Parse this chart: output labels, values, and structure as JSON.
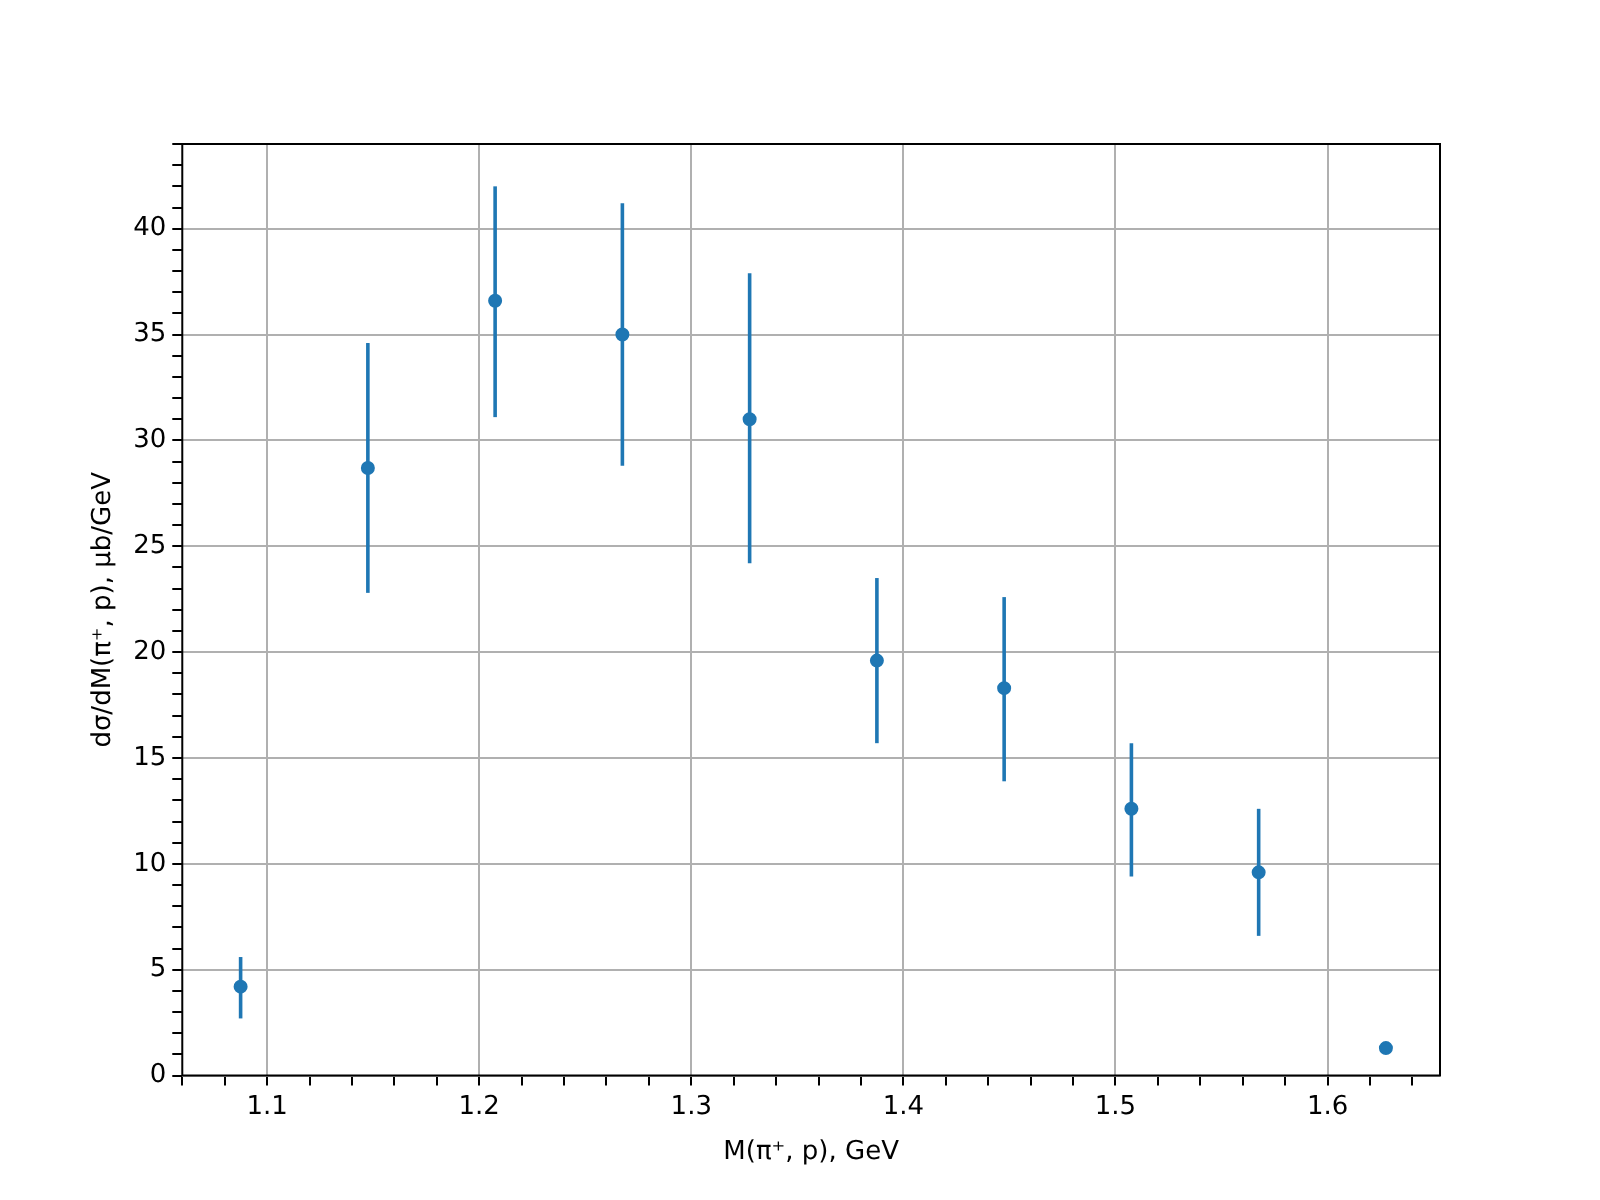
{
  "chart_data": {
    "type": "scatter",
    "xlabel": "M(π⁺, p), GeV",
    "ylabel": "dσ/dM(π⁺, p), μb/GeV",
    "x": [
      1.0875,
      1.1475,
      1.2075,
      1.2675,
      1.3275,
      1.3875,
      1.4475,
      1.5075,
      1.5675,
      1.6275
    ],
    "series": [
      {
        "color": "#1f77b4",
        "values": [
          4.2,
          28.7,
          36.6,
          35.0,
          31.0,
          19.6,
          18.3,
          12.6,
          9.6,
          1.3
        ],
        "errors": [
          [
            2.7,
            5.6
          ],
          [
            22.8,
            34.6
          ],
          [
            31.1,
            42.0
          ],
          [
            28.8,
            41.2
          ],
          [
            24.2,
            37.9
          ],
          [
            15.7,
            23.5
          ],
          [
            13.9,
            22.6
          ],
          [
            9.4,
            15.7
          ],
          [
            6.6,
            12.6
          ],
          null
        ]
      }
    ],
    "marker": "circle",
    "xlim": [
      1.06,
      1.653
    ],
    "ylim": [
      0,
      44
    ],
    "xticks": [
      {
        "value": 1.06,
        "label": null
      },
      {
        "value": 1.08,
        "label": null
      },
      {
        "value": 1.1,
        "label": "1.1"
      },
      {
        "value": 1.12,
        "label": null
      },
      {
        "value": 1.14,
        "label": null
      },
      {
        "value": 1.16,
        "label": null
      },
      {
        "value": 1.18,
        "label": null
      },
      {
        "value": 1.2,
        "label": "1.2"
      },
      {
        "value": 1.22,
        "label": null
      },
      {
        "value": 1.24,
        "label": null
      },
      {
        "value": 1.26,
        "label": null
      },
      {
        "value": 1.28,
        "label": null
      },
      {
        "value": 1.3,
        "label": "1.3"
      },
      {
        "value": 1.32,
        "label": null
      },
      {
        "value": 1.34,
        "label": null
      },
      {
        "value": 1.36,
        "label": null
      },
      {
        "value": 1.38,
        "label": null
      },
      {
        "value": 1.4,
        "label": "1.4"
      },
      {
        "value": 1.42,
        "label": null
      },
      {
        "value": 1.44,
        "label": null
      },
      {
        "value": 1.46,
        "label": null
      },
      {
        "value": 1.48,
        "label": null
      },
      {
        "value": 1.5,
        "label": "1.5"
      },
      {
        "value": 1.52,
        "label": null
      },
      {
        "value": 1.54,
        "label": null
      },
      {
        "value": 1.56,
        "label": null
      },
      {
        "value": 1.58,
        "label": null
      },
      {
        "value": 1.6,
        "label": "1.6"
      },
      {
        "value": 1.62,
        "label": null
      },
      {
        "value": 1.64,
        "label": null
      }
    ],
    "yticks": [
      0,
      {
        "value": 1,
        "label": null
      },
      {
        "value": 2,
        "label": null
      },
      {
        "value": 3,
        "label": null
      },
      {
        "value": 4,
        "label": null
      },
      5,
      {
        "value": 6,
        "label": null
      },
      {
        "value": 7,
        "label": null
      },
      {
        "value": 8,
        "label": null
      },
      {
        "value": 9,
        "label": null
      },
      10,
      {
        "value": 11,
        "label": null
      },
      {
        "value": 12,
        "label": null
      },
      {
        "value": 13,
        "label": null
      },
      {
        "value": 14,
        "label": null
      },
      15,
      {
        "value": 16,
        "label": null
      },
      {
        "value": 17,
        "label": null
      },
      {
        "value": 18,
        "label": null
      },
      {
        "value": 19,
        "label": null
      },
      20,
      {
        "value": 21,
        "label": null
      },
      {
        "value": 22,
        "label": null
      },
      {
        "value": 23,
        "label": null
      },
      {
        "value": 24,
        "label": null
      },
      25,
      {
        "value": 26,
        "label": null
      },
      {
        "value": 27,
        "label": null
      },
      {
        "value": 28,
        "label": null
      },
      {
        "value": 29,
        "label": null
      },
      30,
      {
        "value": 31,
        "label": null
      },
      {
        "value": 32,
        "label": null
      },
      {
        "value": 33,
        "label": null
      },
      {
        "value": 34,
        "label": null
      },
      35,
      {
        "value": 36,
        "label": null
      },
      {
        "value": 37,
        "label": null
      },
      {
        "value": 38,
        "label": null
      },
      {
        "value": 39,
        "label": null
      },
      40,
      {
        "value": 41,
        "label": null
      },
      {
        "value": 42,
        "label": null
      },
      {
        "value": 43,
        "label": null
      },
      {
        "value": 44,
        "label": null
      }
    ],
    "grid": true,
    "legend": false
  }
}
